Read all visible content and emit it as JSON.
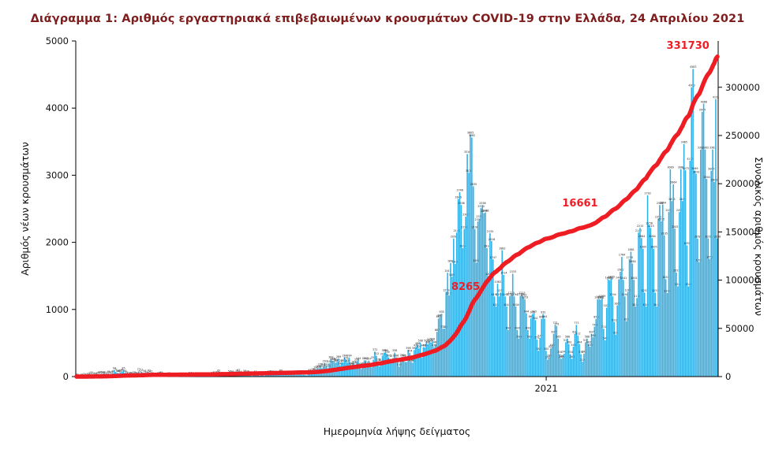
{
  "chart_data": {
    "type": "bar",
    "title": "Διάγραμμα 1: Αριθμός εργαστηριακά επιβεβαιωμένων κρουσμάτων COVID-19 στην Ελλάδα, 24 Απριλίου 2021",
    "title_color": "#7f1d1d",
    "bar_color": "#33b1e6",
    "line_color": "#ee1c23",
    "bar_series_name": "Αριθμός νέων κρουσμάτων",
    "line_series_name": "Συνολικός αριθμός κρουσμάτων",
    "line_is_cumulative_of_bars": true,
    "final_total": 331730,
    "x_axis": {
      "label": "Ημερομηνία λήψης δείγματος",
      "ticks": [
        {
          "label": "2021",
          "index": 310
        }
      ]
    },
    "y_left": {
      "label": "Αριθμός νέων κρουσμάτων",
      "ticks": [
        0,
        1000,
        2000,
        3000,
        4000,
        5000
      ],
      "max": 5000
    },
    "y_right": {
      "label": "Συνολικός αριθμός κρουσμάτων",
      "ticks": [
        0,
        50000,
        100000,
        150000,
        200000,
        250000,
        300000
      ],
      "axis_max": 348000
    },
    "annotations": [
      {
        "text": "8265",
        "fx": 0.607,
        "fy": 0.258
      },
      {
        "text": "16661",
        "fx": 0.785,
        "fy": 0.507
      },
      {
        "text": "331730",
        "fx": 0.953,
        "fy": 0.977
      }
    ],
    "values": [
      3,
      1,
      0,
      3,
      4,
      7,
      5,
      9,
      10,
      21,
      31,
      17,
      15,
      12,
      25,
      31,
      35,
      28,
      38,
      21,
      12,
      46,
      31,
      33,
      48,
      94,
      71,
      56,
      48,
      60,
      74,
      95,
      56,
      32,
      21,
      20,
      28,
      14,
      33,
      25,
      17,
      77,
      52,
      71,
      15,
      56,
      31,
      25,
      62,
      47,
      22,
      15,
      10,
      12,
      18,
      26,
      29,
      16,
      15,
      10,
      8,
      18,
      12,
      9,
      7,
      6,
      3,
      15,
      12,
      10,
      7,
      15,
      14,
      7,
      12,
      24,
      10,
      22,
      19,
      11,
      9,
      21,
      10,
      15,
      12,
      3,
      10,
      18,
      12,
      9,
      23,
      32,
      14,
      35,
      61,
      24,
      12,
      8,
      15,
      20,
      14,
      52,
      43,
      41,
      32,
      27,
      54,
      67,
      44,
      19,
      25,
      56,
      28,
      48,
      31,
      20,
      7,
      31,
      43,
      28,
      21,
      12,
      28,
      23,
      10,
      19,
      26,
      47,
      28,
      50,
      24,
      43,
      25,
      33,
      41,
      60,
      45,
      42,
      33,
      24,
      27,
      31,
      35,
      28,
      35,
      27,
      36,
      40,
      32,
      26,
      27,
      23,
      16,
      32,
      65,
      50,
      78,
      75,
      110,
      121,
      124,
      153,
      124,
      151,
      203,
      152,
      126,
      196,
      262,
      235,
      230,
      208,
      217,
      269,
      168,
      207,
      210,
      284,
      251,
      209,
      284,
      168,
      157,
      193,
      177,
      228,
      244,
      157,
      114,
      168,
      241,
      243,
      177,
      237,
      156,
      137,
      252,
      372,
      312,
      226,
      154,
      218,
      310,
      358,
      359,
      339,
      286,
      218,
      207,
      277,
      358,
      286,
      218,
      149,
      218,
      292,
      286,
      218,
      218,
      398,
      354,
      220,
      206,
      395,
      435,
      468,
      420,
      508,
      280,
      438,
      435,
      508,
      482,
      523,
      508,
      530,
      438,
      482,
      667,
      865,
      882,
      935,
      714,
      715,
      1259,
      1547,
      1211,
      1690,
      1489,
      2056,
      1678,
      2146,
      2646,
      2746,
      2556,
      1914,
      2198,
      2383,
      3316,
      3038,
      3605,
      3562,
      2835,
      2198,
      1698,
      2311,
      2353,
      2510,
      2556,
      2435,
      2446,
      1914,
      1498,
      2135,
      2018,
      1747,
      1193,
      1044,
      1383,
      1194,
      1251,
      1882,
      1514,
      1194,
      1044,
      693,
      1199,
      1215,
      1533,
      1194,
      1044,
      693,
      566,
      1199,
      1215,
      1190,
      1153,
      944,
      693,
      566,
      867,
      930,
      943,
      841,
      552,
      384,
      577,
      858,
      932,
      864,
      385,
      252,
      284,
      420,
      445,
      637,
      771,
      751,
      565,
      334,
      266,
      281,
      341,
      512,
      566,
      483,
      334,
      266,
      445,
      637,
      771,
      612,
      484,
      334,
      222,
      341,
      512,
      566,
      483,
      445,
      637,
      586,
      744,
      858,
      1151,
      1156,
      1148,
      1169,
      711,
      542,
      1027,
      1448,
      1436,
      1460,
      1194,
      811,
      624,
      1061,
      1448,
      1561,
      1784,
      1441,
      1194,
      824,
      1261,
      1748,
      1861,
      1684,
      1441,
      1044,
      1170,
      2147,
      2215,
      2064,
      1905,
      1251,
      1044,
      2702,
      2256,
      2215,
      2064,
      1905,
      1251,
      1044,
      2351,
      2556,
      2315,
      2564,
      2105,
      1451,
      1244,
      2451,
      3089,
      2615,
      2864,
      2205,
      1551,
      1344,
      2451,
      3089,
      2615,
      3465,
      3073,
      1955,
      1344,
      3215,
      4309,
      4583,
      3069,
      3020,
      2056,
      1707,
      3382,
      3944,
      4066,
      3383,
      2944,
      2058,
      1752,
      3065,
      3383,
      2900,
      4131,
      2058
    ]
  }
}
